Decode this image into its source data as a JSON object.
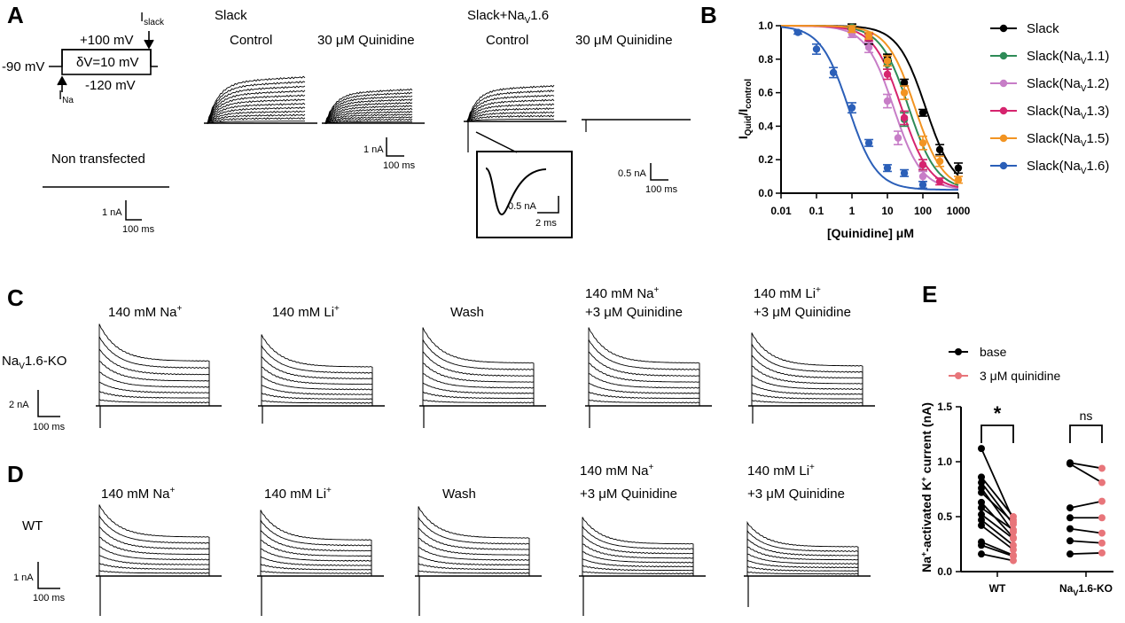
{
  "panels": {
    "A": {
      "letter": "A",
      "protocol": {
        "v_hold": "-90 mV",
        "v_top": "+100 mV",
        "v_bottom": "-120 mV",
        "step": "δV=10 mV",
        "i_slack_main": "I",
        "i_slack_sub": "slack",
        "i_na_main": "I",
        "i_na_sub": "Na"
      },
      "non_transfected": {
        "title": "Non transfected",
        "scale_i": "1 nA",
        "scale_t": "100 ms"
      },
      "slack": {
        "title": "Slack",
        "control": "Control",
        "quin": "30 μM Quinidine",
        "scale_i": "1 nA",
        "scale_t": "100 ms"
      },
      "slack_nav": {
        "title_main": "Slack+Na",
        "title_sub": "V",
        "title_end": "1.6",
        "control": "Control",
        "quin": "30 μM Quinidine",
        "scale_i": "0.5 nA",
        "scale_t": "100 ms"
      },
      "inset": {
        "scale_i": "0.5 nA",
        "scale_t": "2 ms"
      }
    },
    "C": {
      "letter": "C",
      "row_label_main": "Na",
      "row_label_sub": "V",
      "row_label_end": "1.6-KO",
      "scale_i": "2 nA",
      "scale_t": "100 ms",
      "conditions": [
        {
          "line1": "140 mM Na",
          "sup": "+",
          "line2": ""
        },
        {
          "line1": "140 mM Li",
          "sup": "+",
          "line2": ""
        },
        {
          "line1": "Wash",
          "sup": "",
          "line2": ""
        },
        {
          "line1": "140 mM Na",
          "sup": "+",
          "line2": "+3 μM Quinidine"
        },
        {
          "line1": "140 mM Li",
          "sup": "+",
          "line2": "+3 μM Quinidine"
        }
      ]
    },
    "D": {
      "letter": "D",
      "row_label": "WT",
      "scale_i": "1 nA",
      "scale_t": "100 ms",
      "conditions": [
        {
          "line1": "140 mM Na",
          "sup": "+",
          "line2": ""
        },
        {
          "line1": "140 mM Li",
          "sup": "+",
          "line2": ""
        },
        {
          "line1": "Wash",
          "sup": "",
          "line2": ""
        },
        {
          "line1": "140 mM Na",
          "sup": "+",
          "line2": "+3 μM Quinidine"
        },
        {
          "line1": "140 mM Li",
          "sup": "+",
          "line2": "+3 μM Quinidine"
        }
      ]
    }
  },
  "chart_data": [
    {
      "panel": "B",
      "type": "scatter",
      "letter": "B",
      "title": "",
      "xlabel": "[Quinidine] μM",
      "ylabel_main": "I",
      "ylabel_sub1": "Quid",
      "ylabel_mid": "/I",
      "ylabel_sub2": "control",
      "xscale": "log",
      "xlim": [
        0.01,
        1000
      ],
      "ylim": [
        0,
        1.0
      ],
      "xticks": [
        0.01,
        0.1,
        1,
        10,
        100,
        1000
      ],
      "xtick_labels": [
        "0.01",
        "0.1",
        "1",
        "10",
        "100",
        "1000"
      ],
      "yticks": [
        0,
        0.2,
        0.4,
        0.6,
        0.8,
        1.0
      ],
      "ytick_labels": [
        "0.0",
        "0.2",
        "0.4",
        "0.6",
        "0.8",
        "1.0"
      ],
      "legend_position": "right",
      "series": [
        {
          "name": "Slack",
          "label_main": "Slack",
          "label_sub": "",
          "label_end": "",
          "color": "#000000",
          "ic50": 120,
          "x": [
            1,
            3,
            10,
            30,
            100,
            300,
            1000
          ],
          "y": [
            0.99,
            0.92,
            0.81,
            0.66,
            0.48,
            0.26,
            0.15
          ],
          "err": [
            0.02,
            0.03,
            0.02,
            0.02,
            0.02,
            0.03,
            0.03
          ]
        },
        {
          "name": "Slack(NaV1.1)",
          "label_main": "Slack(Na",
          "label_sub": "V",
          "label_end": "1.1)",
          "color": "#2e8b57",
          "ic50": 40,
          "x": [
            1,
            10,
            30,
            100
          ],
          "y": [
            0.99,
            0.77,
            0.44,
            0.17
          ],
          "err": [
            0.01,
            0.03,
            0.04,
            0.03
          ]
        },
        {
          "name": "Slack(NaV1.2)",
          "label_main": "Slack(Na",
          "label_sub": "V",
          "label_end": "1.2)",
          "color": "#c77dc7",
          "ic50": 15,
          "x": [
            1,
            3,
            10,
            20,
            100
          ],
          "y": [
            0.95,
            0.87,
            0.55,
            0.33,
            0.1
          ],
          "err": [
            0.02,
            0.03,
            0.04,
            0.04,
            0.03
          ]
        },
        {
          "name": "Slack(NaV1.3)",
          "label_main": "Slack(Na",
          "label_sub": "V",
          "label_end": "1.3)",
          "color": "#d6246e",
          "ic50": 25,
          "x": [
            3,
            10,
            30,
            100,
            300
          ],
          "y": [
            0.93,
            0.71,
            0.45,
            0.17,
            0.07
          ],
          "err": [
            0.02,
            0.03,
            0.04,
            0.03,
            0.02
          ]
        },
        {
          "name": "Slack(NaV1.5)",
          "label_main": "Slack(Na",
          "label_sub": "V",
          "label_end": "1.5)",
          "color": "#f29422",
          "ic50": 60,
          "x": [
            1,
            3,
            10,
            30,
            100,
            300,
            1000
          ],
          "y": [
            0.98,
            0.94,
            0.79,
            0.6,
            0.3,
            0.19,
            0.08
          ],
          "err": [
            0.02,
            0.02,
            0.03,
            0.04,
            0.04,
            0.03,
            0.02
          ]
        },
        {
          "name": "Slack(NaV1.6)",
          "label_main": "Slack(Na",
          "label_sub": "V",
          "label_end": "1.6)",
          "color": "#2b5fb8",
          "ic50": 0.8,
          "x": [
            0.03,
            0.1,
            0.3,
            1,
            3,
            10,
            30,
            100
          ],
          "y": [
            0.96,
            0.86,
            0.72,
            0.51,
            0.3,
            0.15,
            0.12,
            0.05
          ],
          "err": [
            0.01,
            0.03,
            0.03,
            0.03,
            0.02,
            0.02,
            0.02,
            0.02
          ]
        }
      ]
    },
    {
      "panel": "E",
      "type": "scatter",
      "letter": "E",
      "title": "",
      "xlabel": "",
      "ylabel_pre": "Na",
      "ylabel_sup1": "+",
      "ylabel_mid": "-activated K",
      "ylabel_sup2": "+",
      "ylabel_end": " current (nA)",
      "ylim": [
        0,
        1.5
      ],
      "yticks": [
        0,
        0.5,
        1.0,
        1.5
      ],
      "ytick_labels": [
        "0.0",
        "0.5",
        "1.0",
        "1.5"
      ],
      "categories": [
        "WT",
        "NaV1.6-KO"
      ],
      "category_labels": [
        {
          "main": "WT",
          "sub": "",
          "end": ""
        },
        {
          "main": "Na",
          "sub": "V",
          "end": "1.6-KO"
        }
      ],
      "legend": [
        {
          "name": "base",
          "color": "#000000"
        },
        {
          "name": "3 μM quinidine",
          "color": "#e8757a"
        }
      ],
      "significance": [
        "*",
        "ns"
      ],
      "paired": [
        {
          "group": "WT",
          "base": [
            1.12,
            0.86,
            0.81,
            0.76,
            0.72,
            0.63,
            0.58,
            0.52,
            0.47,
            0.42,
            0.27,
            0.24,
            0.16
          ],
          "quin": [
            0.47,
            0.5,
            0.43,
            0.36,
            0.45,
            0.31,
            0.38,
            0.3,
            0.24,
            0.2,
            0.15,
            0.14,
            0.1
          ]
        },
        {
          "group": "NaV1.6-KO",
          "base": [
            0.99,
            0.98,
            0.58,
            0.49,
            0.39,
            0.28,
            0.16
          ],
          "quin": [
            0.94,
            0.81,
            0.64,
            0.49,
            0.35,
            0.26,
            0.17
          ]
        }
      ]
    }
  ]
}
